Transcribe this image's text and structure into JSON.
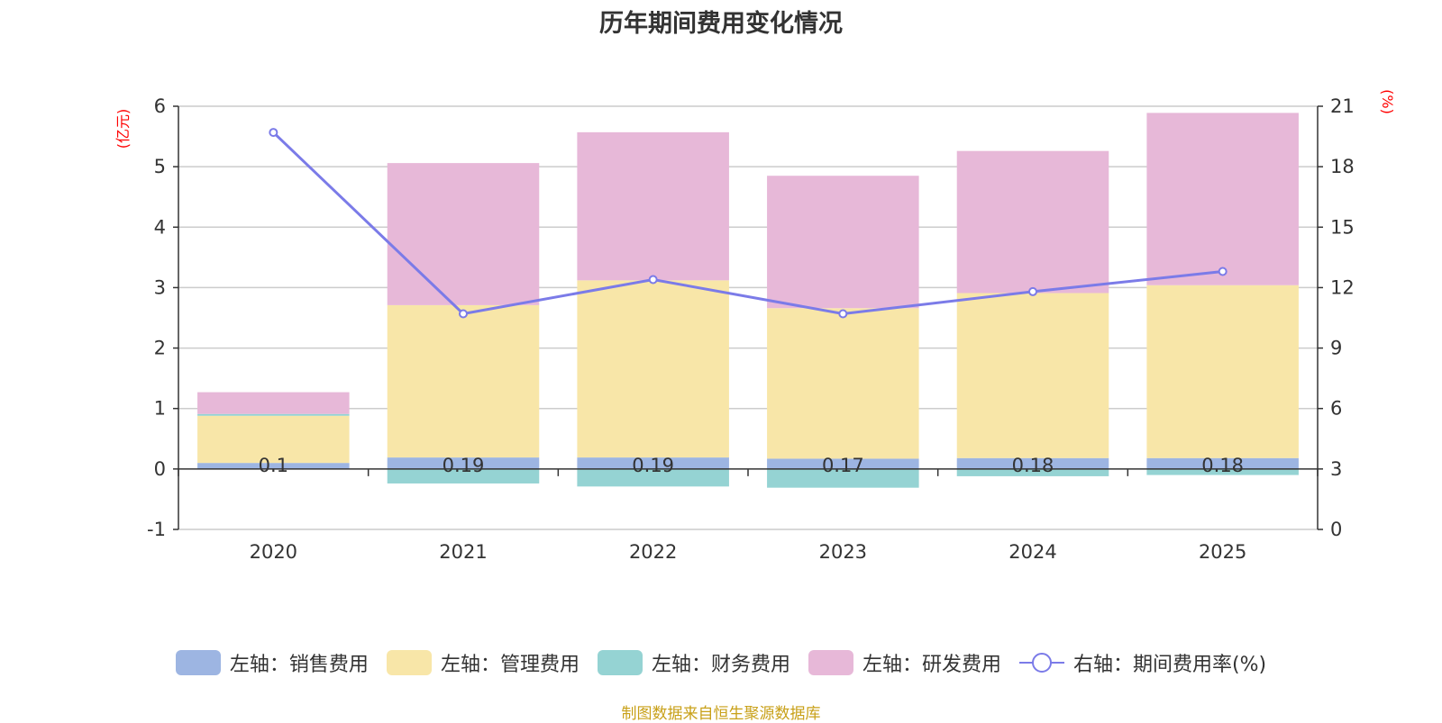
{
  "title": "历年期间费用变化情况",
  "source": "制图数据来自恒生聚源数据库",
  "colors": {
    "sales": "#9db5e2",
    "admin": "#f8e6a8",
    "finance": "#95d3d3",
    "rd": "#e7b8d8",
    "rate": "#7b7be8",
    "grid": "#cccccc",
    "axis": "#333333",
    "unit": "#ff0000"
  },
  "chart_data": {
    "type": "bar",
    "stacked": true,
    "title": "历年期间费用变化情况",
    "categories": [
      "2020",
      "2021",
      "2022",
      "2023",
      "2024",
      "2025"
    ],
    "left_axis": {
      "unit": "(亿元)",
      "ylim": [
        -1,
        6
      ],
      "ticks": [
        "-1",
        "0",
        "1",
        "2",
        "3",
        "4",
        "5",
        "6"
      ]
    },
    "right_axis": {
      "unit": "(%)",
      "ylim": [
        0,
        21
      ],
      "ticks": [
        "0",
        "3",
        "6",
        "9",
        "12",
        "15",
        "18",
        "21"
      ]
    },
    "series": [
      {
        "key": "sales",
        "name": "左轴：销售费用",
        "axis": "left",
        "values": [
          0.1,
          0.19,
          0.19,
          0.17,
          0.18,
          0.18
        ],
        "labels": [
          "0.1",
          "0.19",
          "0.19",
          "0.17",
          "0.18",
          "0.18"
        ]
      },
      {
        "key": "admin",
        "name": "左轴：管理费用",
        "axis": "left",
        "values": [
          0.78,
          2.52,
          2.93,
          2.49,
          2.73,
          2.86
        ]
      },
      {
        "key": "finance",
        "name": "左轴：财务费用",
        "axis": "left",
        "values": [
          0.03,
          -0.24,
          -0.29,
          -0.31,
          -0.12,
          -0.1
        ]
      },
      {
        "key": "rd",
        "name": "左轴：研发费用",
        "axis": "left",
        "values": [
          0.36,
          2.35,
          2.45,
          2.19,
          2.35,
          2.85
        ]
      },
      {
        "key": "rate",
        "name": "右轴：期间费用率(%)",
        "axis": "right",
        "type": "line",
        "values": [
          19.7,
          10.7,
          12.4,
          10.7,
          11.8,
          12.8
        ]
      }
    ],
    "legend_position": "bottom"
  }
}
